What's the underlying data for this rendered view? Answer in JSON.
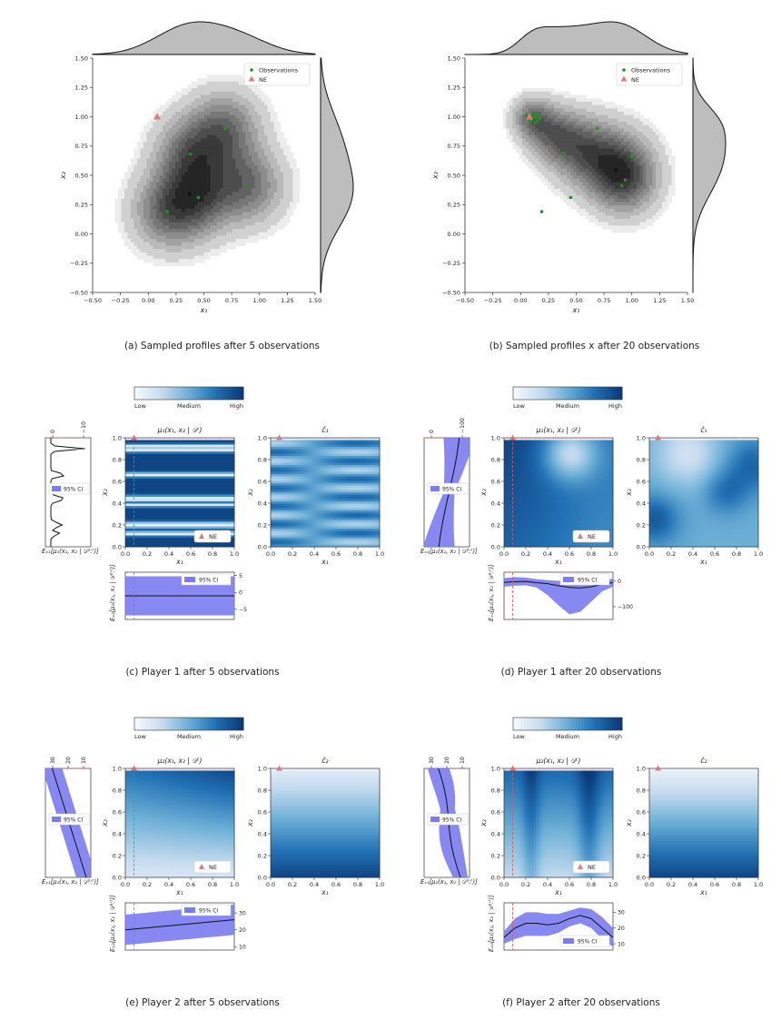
{
  "colors": {
    "contour_dark": "#111111",
    "contour_light": "#e6e6e6",
    "observation": "#2a8a2a",
    "ne_marker": "#e07a7a",
    "ne_line": "#e05555",
    "ci_fill": "#7b7bf2",
    "heat_low": "#f3f8fd",
    "heat_high": "#0b3a78",
    "marginal_fill": "#bdbdbd"
  },
  "chart_data": [
    {
      "id": "a",
      "type": "scatter",
      "subtype": "kde_joint_plot",
      "caption": "(a) Sampled profiles after 5 observations",
      "xlabel": "x₁",
      "ylabel": "x₂",
      "xlim": [
        -0.5,
        1.5
      ],
      "ylim": [
        -0.5,
        1.5
      ],
      "xticks": [
        "−0.50",
        "−0.25",
        "0.00",
        "0.25",
        "0.50",
        "0.75",
        "1.00",
        "1.25",
        "1.50"
      ],
      "yticks": [
        "−0.50",
        "−0.25",
        "0.00",
        "0.25",
        "0.50",
        "0.75",
        "1.00",
        "1.25",
        "1.50"
      ],
      "legend": {
        "placement": "top-right",
        "entries": [
          "Observations",
          "NE"
        ]
      },
      "observations": [
        [
          0.38,
          0.68
        ],
        [
          0.45,
          0.31
        ],
        [
          0.17,
          0.19
        ],
        [
          0.69,
          0.9
        ],
        [
          0.9,
          0.41
        ]
      ],
      "ne": [
        0.08,
        1.0
      ],
      "density_centers": [
        [
          0.38,
          0.68,
          0.22
        ],
        [
          0.45,
          0.31,
          0.22
        ],
        [
          0.17,
          0.19,
          0.22
        ],
        [
          0.69,
          0.9,
          0.22
        ],
        [
          0.9,
          0.41,
          0.22
        ]
      ],
      "grid": false
    },
    {
      "id": "b",
      "type": "scatter",
      "subtype": "kde_joint_plot",
      "caption": "(b) Sampled profiles x after 20 observations",
      "xlabel": "x₁",
      "ylabel": "x₂",
      "xlim": [
        -0.5,
        1.5
      ],
      "ylim": [
        -0.5,
        1.5
      ],
      "xticks": [
        "−0.50",
        "−0.25",
        "0.00",
        "0.25",
        "0.50",
        "0.75",
        "1.00",
        "1.25",
        "1.50"
      ],
      "yticks": [
        "−0.50",
        "−0.25",
        "0.00",
        "0.25",
        "0.50",
        "0.75",
        "1.00",
        "1.25",
        "1.50"
      ],
      "legend": {
        "placement": "top-right",
        "entries": [
          "Observations",
          "NE"
        ]
      },
      "observations": [
        [
          0.06,
          0.99
        ],
        [
          0.1,
          0.97
        ],
        [
          0.12,
          1.0
        ],
        [
          0.15,
          0.96
        ],
        [
          0.17,
          0.98
        ],
        [
          0.05,
          1.01
        ],
        [
          0.14,
          0.99
        ],
        [
          0.13,
          0.95
        ],
        [
          0.11,
          1.02
        ],
        [
          0.16,
          1.0
        ],
        [
          0.09,
          0.96
        ],
        [
          0.37,
          0.68
        ],
        [
          0.69,
          0.9
        ],
        [
          1.0,
          0.66
        ],
        [
          0.94,
          0.46
        ],
        [
          0.91,
          0.41
        ],
        [
          0.45,
          0.31
        ],
        [
          0.19,
          0.19
        ],
        [
          0.08,
          0.98
        ],
        [
          0.14,
          1.03
        ]
      ],
      "ne": [
        0.08,
        1.0
      ],
      "density_centers": [
        [
          0.1,
          0.99,
          0.12
        ],
        [
          0.3,
          0.85,
          0.16
        ],
        [
          0.55,
          0.72,
          0.2
        ],
        [
          0.85,
          0.6,
          0.22
        ],
        [
          0.95,
          0.45,
          0.2
        ]
      ],
      "grid": false
    },
    {
      "id": "c",
      "type": "heatmap",
      "caption": "(c) Player 1 after 5 observations",
      "colorbar_labels": [
        "Low",
        "Medium",
        "High"
      ],
      "mean_title": "μ₁(x₁, x₂ | 𝒟ᵗ)",
      "side_title": "ĉ₁",
      "xlabel": "x₁",
      "ylabel": "x₂",
      "ticks": [
        "0.0",
        "0.2",
        "0.4",
        "0.6",
        "0.8",
        "1.0"
      ],
      "left_marginal": {
        "label": "Eₓ₁[μ₁(x₁, x₂ | 𝒟¹ːᵗ)]",
        "ticks": [
          "0",
          "−10"
        ]
      },
      "bottom_marginal": {
        "label": "Eₓ₂[μ₁(x₁, x₂ | 𝒟¹ːᵗ)]",
        "ticks": [
          "5",
          "0",
          "−5"
        ],
        "range": [
          -8,
          6
        ],
        "x": [
          0,
          1
        ],
        "mean": [
          -1,
          -1
        ],
        "ci_low": [
          -6.8,
          -6.8
        ],
        "ci_high": [
          4.8,
          4.8
        ]
      },
      "ci_label": "95% CI",
      "ne_label": "NE",
      "ne": [
        0.08,
        1.0
      ]
    },
    {
      "id": "d",
      "type": "heatmap",
      "caption": "(d) Player 1 after 20 observations",
      "colorbar_labels": [
        "Low",
        "Medium",
        "High"
      ],
      "mean_title": "μ₁(x₁, x₂ | 𝒟ᵗ)",
      "side_title": "ĉ₁",
      "xlabel": "x₁",
      "ylabel": "x₂",
      "ticks": [
        "0.0",
        "0.2",
        "0.4",
        "0.6",
        "0.8",
        "1.0"
      ],
      "left_marginal": {
        "label": "Eₓ₁[μ₁(x₁, x₂ | 𝒟¹ːᵗ)]",
        "ticks": [
          "0",
          "−100"
        ]
      },
      "bottom_marginal": {
        "label": "Eₓ₂[μ₁(x₁, x₂ | 𝒟¹ːᵗ)]",
        "ticks": [
          "0",
          "−100"
        ],
        "range": [
          -150,
          35
        ],
        "x": [
          0,
          0.1,
          0.2,
          0.3,
          0.4,
          0.5,
          0.6,
          0.7,
          0.8,
          0.9,
          1.0
        ],
        "mean": [
          -5,
          -2,
          -1,
          -6,
          -10,
          -18,
          -24,
          -27,
          -22,
          -12,
          -6
        ],
        "ci_low": [
          -22,
          -18,
          -16,
          -25,
          -55,
          -95,
          -130,
          -120,
          -80,
          -40,
          -22
        ],
        "ci_high": [
          12,
          16,
          14,
          8,
          4,
          1,
          6,
          10,
          8,
          4,
          10
        ]
      },
      "ci_label": "95% CI",
      "ne_label": "NE",
      "ne": [
        0.08,
        1.0
      ]
    },
    {
      "id": "e",
      "type": "heatmap",
      "caption": "(e) Player 2 after 5 observations",
      "colorbar_labels": [
        "Low",
        "Medium",
        "High"
      ],
      "mean_title": "μ₂(x₁, x₂ | 𝒟ᵗ)",
      "side_title": "ĉ₂",
      "xlabel": "x₁",
      "ylabel": "x₂",
      "ticks": [
        "0.0",
        "0.2",
        "0.4",
        "0.6",
        "0.8",
        "1.0"
      ],
      "left_marginal": {
        "label": "Eₓ₁[μ₂(x₁, x₂ | 𝒟¹ːᵗ)]",
        "ticks": [
          "30",
          "20",
          "10"
        ]
      },
      "bottom_marginal": {
        "label": "Eₓ₂[μ₂(x₁, x₂ | 𝒟¹ːᵗ)]",
        "ticks": [
          "30",
          "20",
          "10"
        ],
        "range": [
          8,
          36
        ],
        "x": [
          0,
          1
        ],
        "mean": [
          20,
          26
        ],
        "ci_low": [
          11,
          17
        ],
        "ci_high": [
          29,
          35
        ]
      },
      "ci_label": "95% CI",
      "ne_label": "NE",
      "ne": [
        0.08,
        1.0
      ]
    },
    {
      "id": "f",
      "type": "heatmap",
      "caption": "(f) Player 2 after 20 observations",
      "colorbar_labels": [
        "Low",
        "Medium",
        "High"
      ],
      "mean_title": "μ₂(x₁, x₂ | 𝒟ᵗ)",
      "side_title": "ĉ₂",
      "xlabel": "x₁",
      "ylabel": "x₂",
      "ticks": [
        "0.0",
        "0.2",
        "0.4",
        "0.6",
        "0.8",
        "1.0"
      ],
      "left_marginal": {
        "label": "Eₓ₁[μ₂(x₁, x₂ | 𝒟¹ːᵗ)]",
        "ticks": [
          "30",
          "20",
          "10"
        ]
      },
      "bottom_marginal": {
        "label": "Eₓ₂[μ₂(x₁, x₂ | 𝒟¹ːᵗ)]",
        "ticks": [
          "30",
          "20",
          "10"
        ],
        "range": [
          6,
          36
        ],
        "x": [
          0,
          0.1,
          0.2,
          0.3,
          0.4,
          0.5,
          0.6,
          0.7,
          0.8,
          0.9,
          1.0
        ],
        "mean": [
          14,
          20,
          23,
          23,
          22,
          23,
          26,
          28,
          26,
          20,
          14
        ],
        "ci_low": [
          10,
          13,
          15,
          15,
          15,
          17,
          21,
          23,
          20,
          13,
          8
        ],
        "ci_high": [
          18,
          26,
          30,
          30,
          29,
          29,
          31,
          33,
          32,
          27,
          20
        ]
      },
      "ci_label": "95% CI",
      "ne_label": "NE",
      "ne": [
        0.08,
        1.0
      ]
    }
  ]
}
